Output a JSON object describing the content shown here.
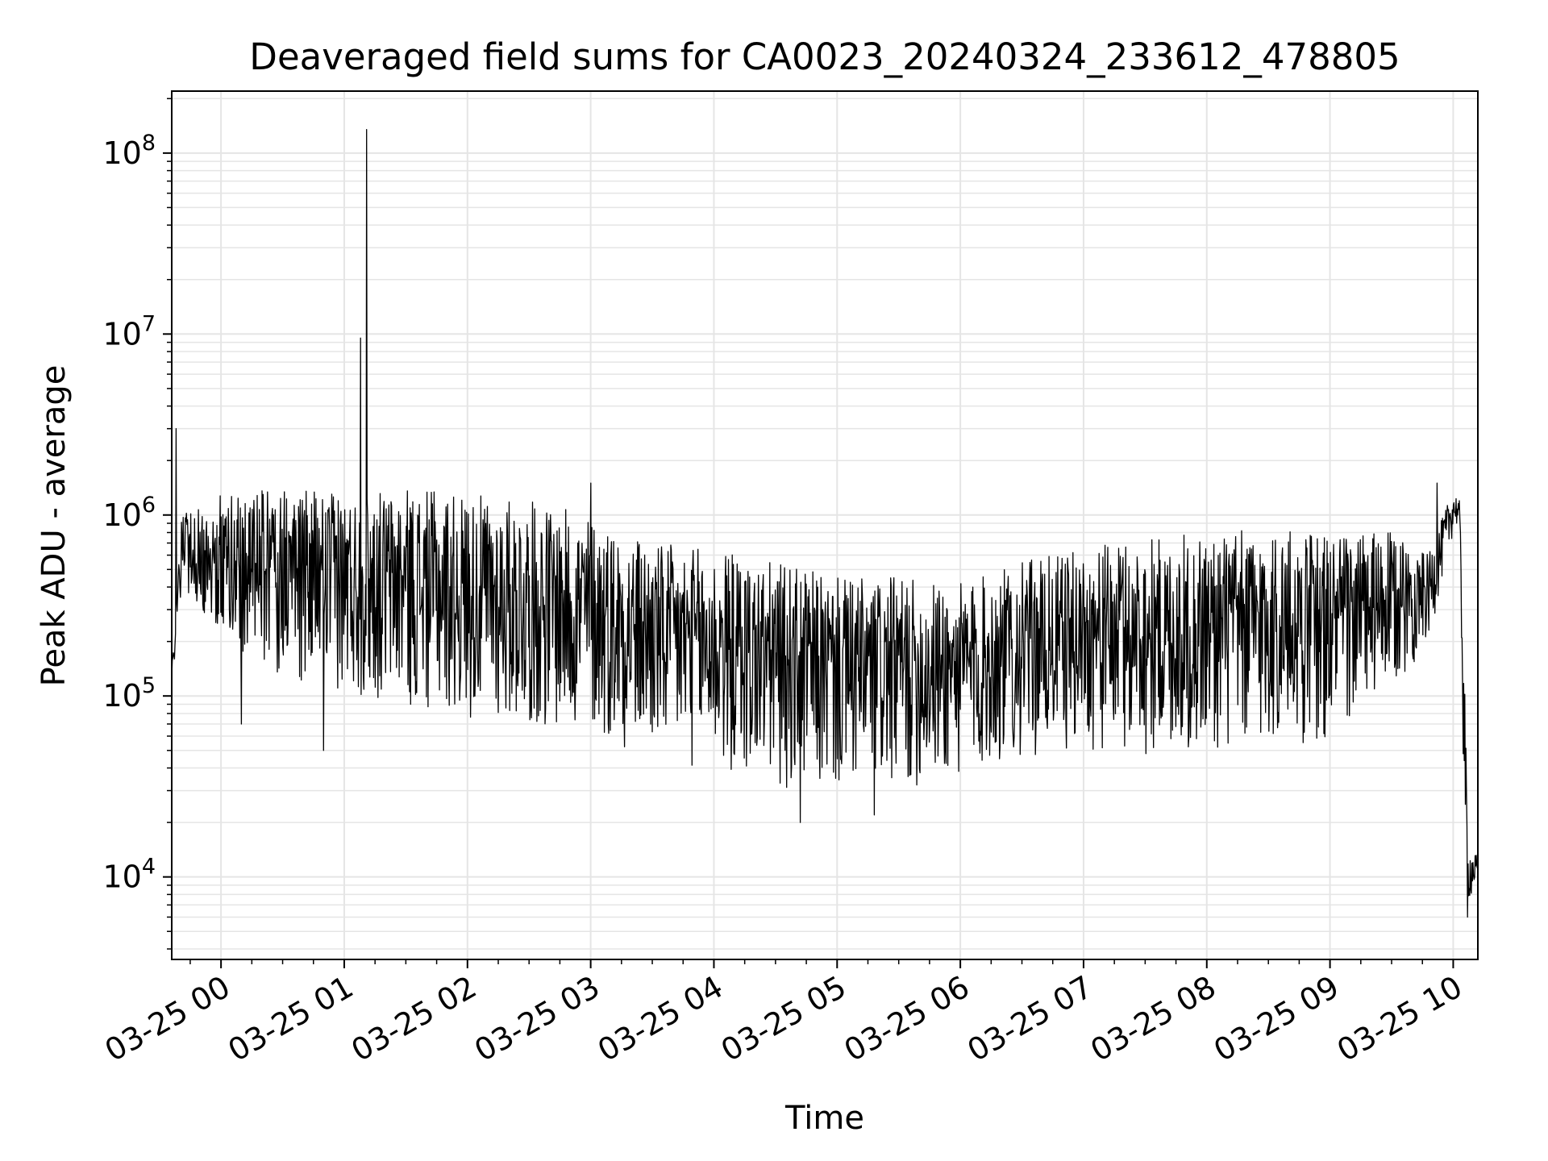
{
  "chart_data": {
    "type": "line",
    "title": "Deaveraged field sums for CA0023_20240324_233612_478805",
    "xlabel": "Time",
    "ylabel": "Peak ADU - average",
    "yscale": "log",
    "ylim": [
      3500,
      220000000
    ],
    "xlim": [
      "2024-03-24 23:36",
      "2024-03-25 10:12"
    ],
    "grid": true,
    "legend": "none",
    "line_color": "#000000",
    "grid_color": "#e5e5e5",
    "x_ticks": [
      {
        "time": "2024-03-25 00:00",
        "label": "03-25 00"
      },
      {
        "time": "2024-03-25 01:00",
        "label": "03-25 01"
      },
      {
        "time": "2024-03-25 02:00",
        "label": "03-25 02"
      },
      {
        "time": "2024-03-25 03:00",
        "label": "03-25 03"
      },
      {
        "time": "2024-03-25 04:00",
        "label": "03-25 04"
      },
      {
        "time": "2024-03-25 05:00",
        "label": "03-25 05"
      },
      {
        "time": "2024-03-25 06:00",
        "label": "03-25 06"
      },
      {
        "time": "2024-03-25 07:00",
        "label": "03-25 07"
      },
      {
        "time": "2024-03-25 08:00",
        "label": "03-25 08"
      },
      {
        "time": "2024-03-25 09:00",
        "label": "03-25 09"
      },
      {
        "time": "2024-03-25 10:00",
        "label": "03-25 10"
      }
    ],
    "y_ticks": [
      {
        "value": 10000,
        "base": "10",
        "exp": "4"
      },
      {
        "value": 100000,
        "base": "10",
        "exp": "5"
      },
      {
        "value": 1000000,
        "base": "10",
        "exp": "6"
      },
      {
        "value": 10000000,
        "base": "10",
        "exp": "7"
      },
      {
        "value": 100000000,
        "base": "10",
        "exp": "8"
      }
    ],
    "envelope": [
      {
        "time": "2024-03-24 23:36",
        "low": 100000,
        "high": 150000
      },
      {
        "time": "2024-03-24 23:41",
        "low": 400000,
        "high": 1000000
      },
      {
        "time": "2024-03-25 00:00",
        "low": 200000,
        "high": 1300000
      },
      {
        "time": "2024-03-25 00:30",
        "low": 130000,
        "high": 1400000
      },
      {
        "time": "2024-03-25 01:00",
        "low": 100000,
        "high": 1300000
      },
      {
        "time": "2024-03-25 01:30",
        "low": 85000,
        "high": 1400000
      },
      {
        "time": "2024-03-25 02:00",
        "low": 75000,
        "high": 1300000
      },
      {
        "time": "2024-03-25 02:30",
        "low": 65000,
        "high": 1200000
      },
      {
        "time": "2024-03-25 03:00",
        "low": 60000,
        "high": 1000000
      },
      {
        "time": "2024-03-25 03:30",
        "low": 45000,
        "high": 700000
      },
      {
        "time": "2024-03-25 04:00",
        "low": 38000,
        "high": 650000
      },
      {
        "time": "2024-03-25 04:30",
        "low": 30000,
        "high": 550000
      },
      {
        "time": "2024-03-25 05:00",
        "low": 28000,
        "high": 450000
      },
      {
        "time": "2024-03-25 05:30",
        "low": 30000,
        "high": 450000
      },
      {
        "time": "2024-03-25 06:00",
        "low": 33000,
        "high": 420000
      },
      {
        "time": "2024-03-25 06:30",
        "low": 45000,
        "high": 550000
      },
      {
        "time": "2024-03-25 07:00",
        "low": 50000,
        "high": 650000
      },
      {
        "time": "2024-03-25 07:30",
        "low": 45000,
        "high": 750000
      },
      {
        "time": "2024-03-25 08:00",
        "low": 45000,
        "high": 800000
      },
      {
        "time": "2024-03-25 08:30",
        "low": 50000,
        "high": 850000
      },
      {
        "time": "2024-03-25 09:00",
        "low": 55000,
        "high": 800000
      },
      {
        "time": "2024-03-25 09:30",
        "low": 100000,
        "high": 800000
      },
      {
        "time": "2024-03-25 09:48",
        "low": 200000,
        "high": 600000
      },
      {
        "time": "2024-03-25 10:00",
        "low": 800000,
        "high": 1400000
      },
      {
        "time": "2024-03-25 10:03",
        "low": 900000,
        "high": 1200000
      },
      {
        "time": "2024-03-25 10:05",
        "low": 30000,
        "high": 300000
      },
      {
        "time": "2024-03-25 10:07",
        "low": 7000,
        "high": 15000
      },
      {
        "time": "2024-03-25 10:12",
        "low": 9000,
        "high": 13000
      }
    ],
    "spikes": [
      {
        "time": "2024-03-24 23:38",
        "value": 3000000
      },
      {
        "time": "2024-03-25 00:57",
        "value": 1200000
      },
      {
        "time": "2024-03-25 01:08",
        "value": 9500000
      },
      {
        "time": "2024-03-25 01:11",
        "value": 135000000
      },
      {
        "time": "2024-03-25 03:00",
        "value": 1500000
      },
      {
        "time": "2024-03-25 09:52",
        "value": 1500000
      }
    ],
    "dips": [
      {
        "time": "2024-03-25 00:10",
        "value": 70000
      },
      {
        "time": "2024-03-25 00:50",
        "value": 50000
      },
      {
        "time": "2024-03-25 04:42",
        "value": 20000
      },
      {
        "time": "2024-03-25 05:18",
        "value": 22000
      },
      {
        "time": "2024-03-25 10:07",
        "value": 6000
      }
    ]
  }
}
